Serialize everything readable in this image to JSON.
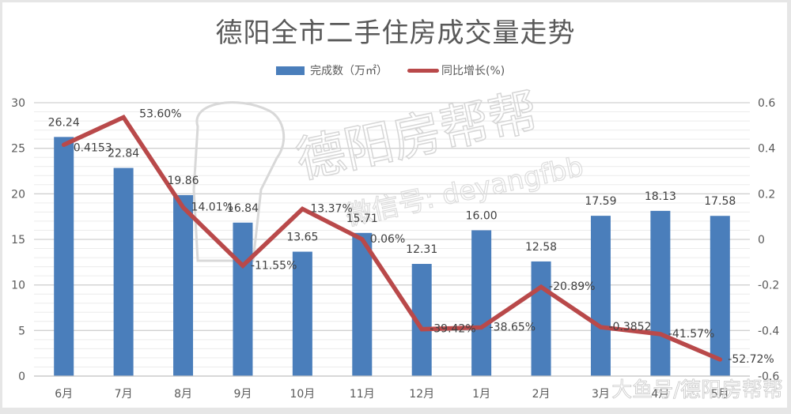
{
  "chart_data": {
    "type": "bar",
    "title": "德阳全市二手住房成交量走势",
    "categories": [
      "6月",
      "7月",
      "8月",
      "9月",
      "10月",
      "11月",
      "12月",
      "1月",
      "2月",
      "3月",
      "4月",
      "5月"
    ],
    "series": [
      {
        "name": "完成数（万㎡）",
        "type": "bar",
        "axis": "left",
        "color": "#4a7ebb",
        "values": [
          26.24,
          22.84,
          19.86,
          16.84,
          13.65,
          15.71,
          12.31,
          16.0,
          12.58,
          17.59,
          18.13,
          17.58
        ],
        "labels": [
          "26.24",
          "22.84",
          "19.86",
          "16.84",
          "13.65",
          "15.71",
          "12.31",
          "16.00",
          "12.58",
          "17.59",
          "18.13",
          "17.58"
        ]
      },
      {
        "name": "同比增长(%)",
        "type": "line",
        "axis": "right",
        "color": "#b9494a",
        "values": [
          0.4153,
          0.536,
          0.1401,
          -0.1155,
          0.1337,
          0.0006,
          -0.3942,
          -0.3865,
          -0.2089,
          -0.3852,
          -0.4157,
          -0.5272
        ],
        "labels": [
          "0.4153",
          "53.60%",
          "14.01%",
          "-11.55%",
          "13.37%",
          "0.06%",
          "-39.42%",
          "-38.65%",
          "-20.89%",
          "-0.3852",
          "-41.57%",
          "-52.72%"
        ]
      }
    ],
    "left_axis": {
      "ylim": [
        0,
        30
      ],
      "ticks": [
        "0",
        "5",
        "10",
        "15",
        "20",
        "25",
        "30"
      ]
    },
    "right_axis": {
      "ylim": [
        -0.6,
        0.6
      ],
      "ticks": [
        "-0.6",
        "-0.4",
        "-0.2",
        "0",
        "0.2",
        "0.4",
        "0.6"
      ]
    },
    "xlabel": "",
    "ylabel": "",
    "grid": true,
    "legend_position": "top"
  },
  "legend": {
    "bar_label": "完成数（万㎡）",
    "line_label": "同比增长(%)"
  },
  "watermarks": {
    "main": "德阳房帮帮",
    "sub": "微信号: deyangfbb",
    "corner": "大鱼号/德阳房帮帮"
  }
}
